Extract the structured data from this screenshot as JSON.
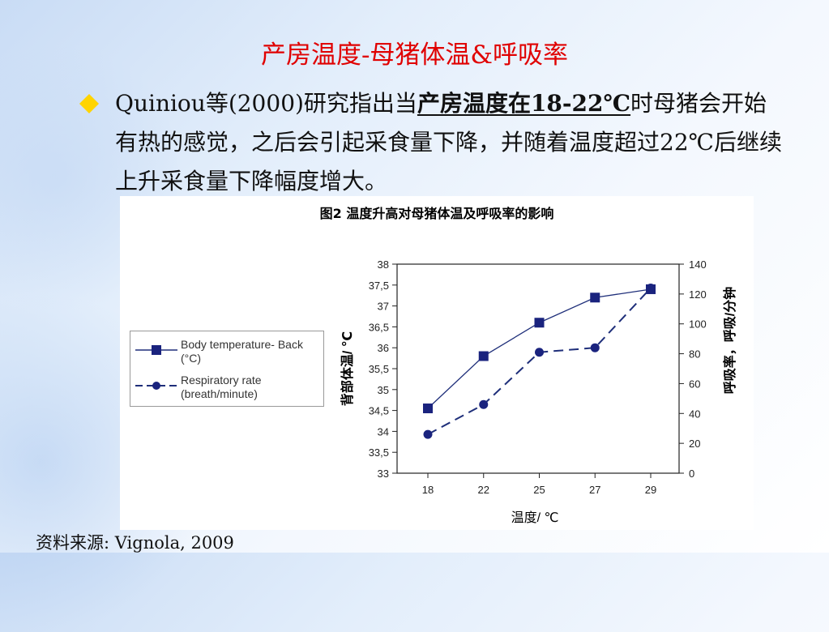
{
  "slide": {
    "title": "产房温度-母猪体温&呼吸率",
    "paragraph": {
      "part1": "Quiniou等(2000)研究指出当",
      "emphasis": "产房温度在18-22℃",
      "part2": "时母猪会开始有热的感觉，之后会引起采食量下降，并随着温度超过22℃后继续上升采食量下降幅度增大。"
    },
    "source": "资料来源: Vignola, 2009",
    "bullet_color": "#ffd400",
    "title_color": "#e00000"
  },
  "chart_data": {
    "type": "line",
    "caption": "图2  温度升高对母猪体温及呼吸率的影响",
    "xlabel": "温度/ ℃",
    "ylabel_left": "背部体温/ ℃",
    "ylabel_right": "呼吸率，呼吸/分钟",
    "categories": [
      "18",
      "22",
      "25",
      "27",
      "29"
    ],
    "y_left": {
      "min": 33,
      "max": 38,
      "ticks": [
        "33",
        "33,5",
        "34",
        "34,5",
        "35",
        "35,5",
        "36",
        "36,5",
        "37",
        "37,5",
        "38"
      ]
    },
    "y_right": {
      "min": 0,
      "max": 140,
      "ticks": [
        "0",
        "20",
        "40",
        "60",
        "80",
        "100",
        "120",
        "140"
      ]
    },
    "series": [
      {
        "name": "Body temperature- Back (°C)",
        "label_line1": "Body temperature- Back",
        "label_line2": "(°C)",
        "axis": "left",
        "marker": "square",
        "style": "solid",
        "color": "#1f2f7a",
        "values": [
          34.55,
          35.8,
          36.6,
          37.2,
          37.4
        ]
      },
      {
        "name": "Respiratory rate (breath/minute)",
        "label_line1": "Respiratory rate",
        "label_line2": "(breath/minute)",
        "axis": "right",
        "marker": "circle",
        "style": "dashed",
        "color": "#1f2f7a",
        "values": [
          26,
          46,
          81,
          84,
          124
        ]
      }
    ],
    "grid": false,
    "legend_position": "left"
  }
}
